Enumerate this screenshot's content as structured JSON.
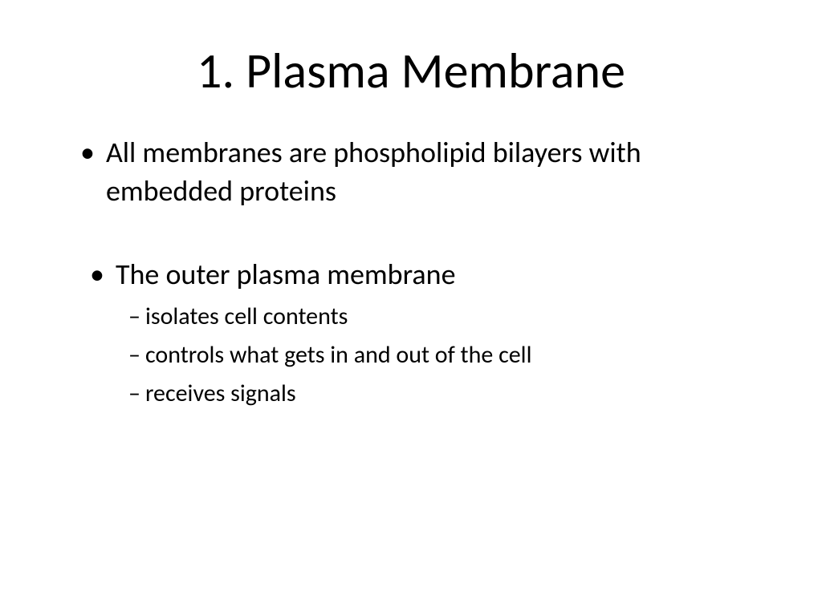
{
  "slide": {
    "title": "1. Plasma Membrane",
    "bullets": [
      {
        "text": "All membranes are phospholipid bilayers with embedded proteins"
      },
      {
        "text": "The outer plasma membrane",
        "subitems": [
          "isolates cell contents",
          "controls what gets in and out of the cell",
          "receives signals"
        ]
      }
    ]
  },
  "styling": {
    "background_color": "#ffffff",
    "text_color": "#000000",
    "title_fontsize": 62,
    "bullet_fontsize": 36,
    "sub_fontsize": 30,
    "font_family": "Calibri"
  }
}
